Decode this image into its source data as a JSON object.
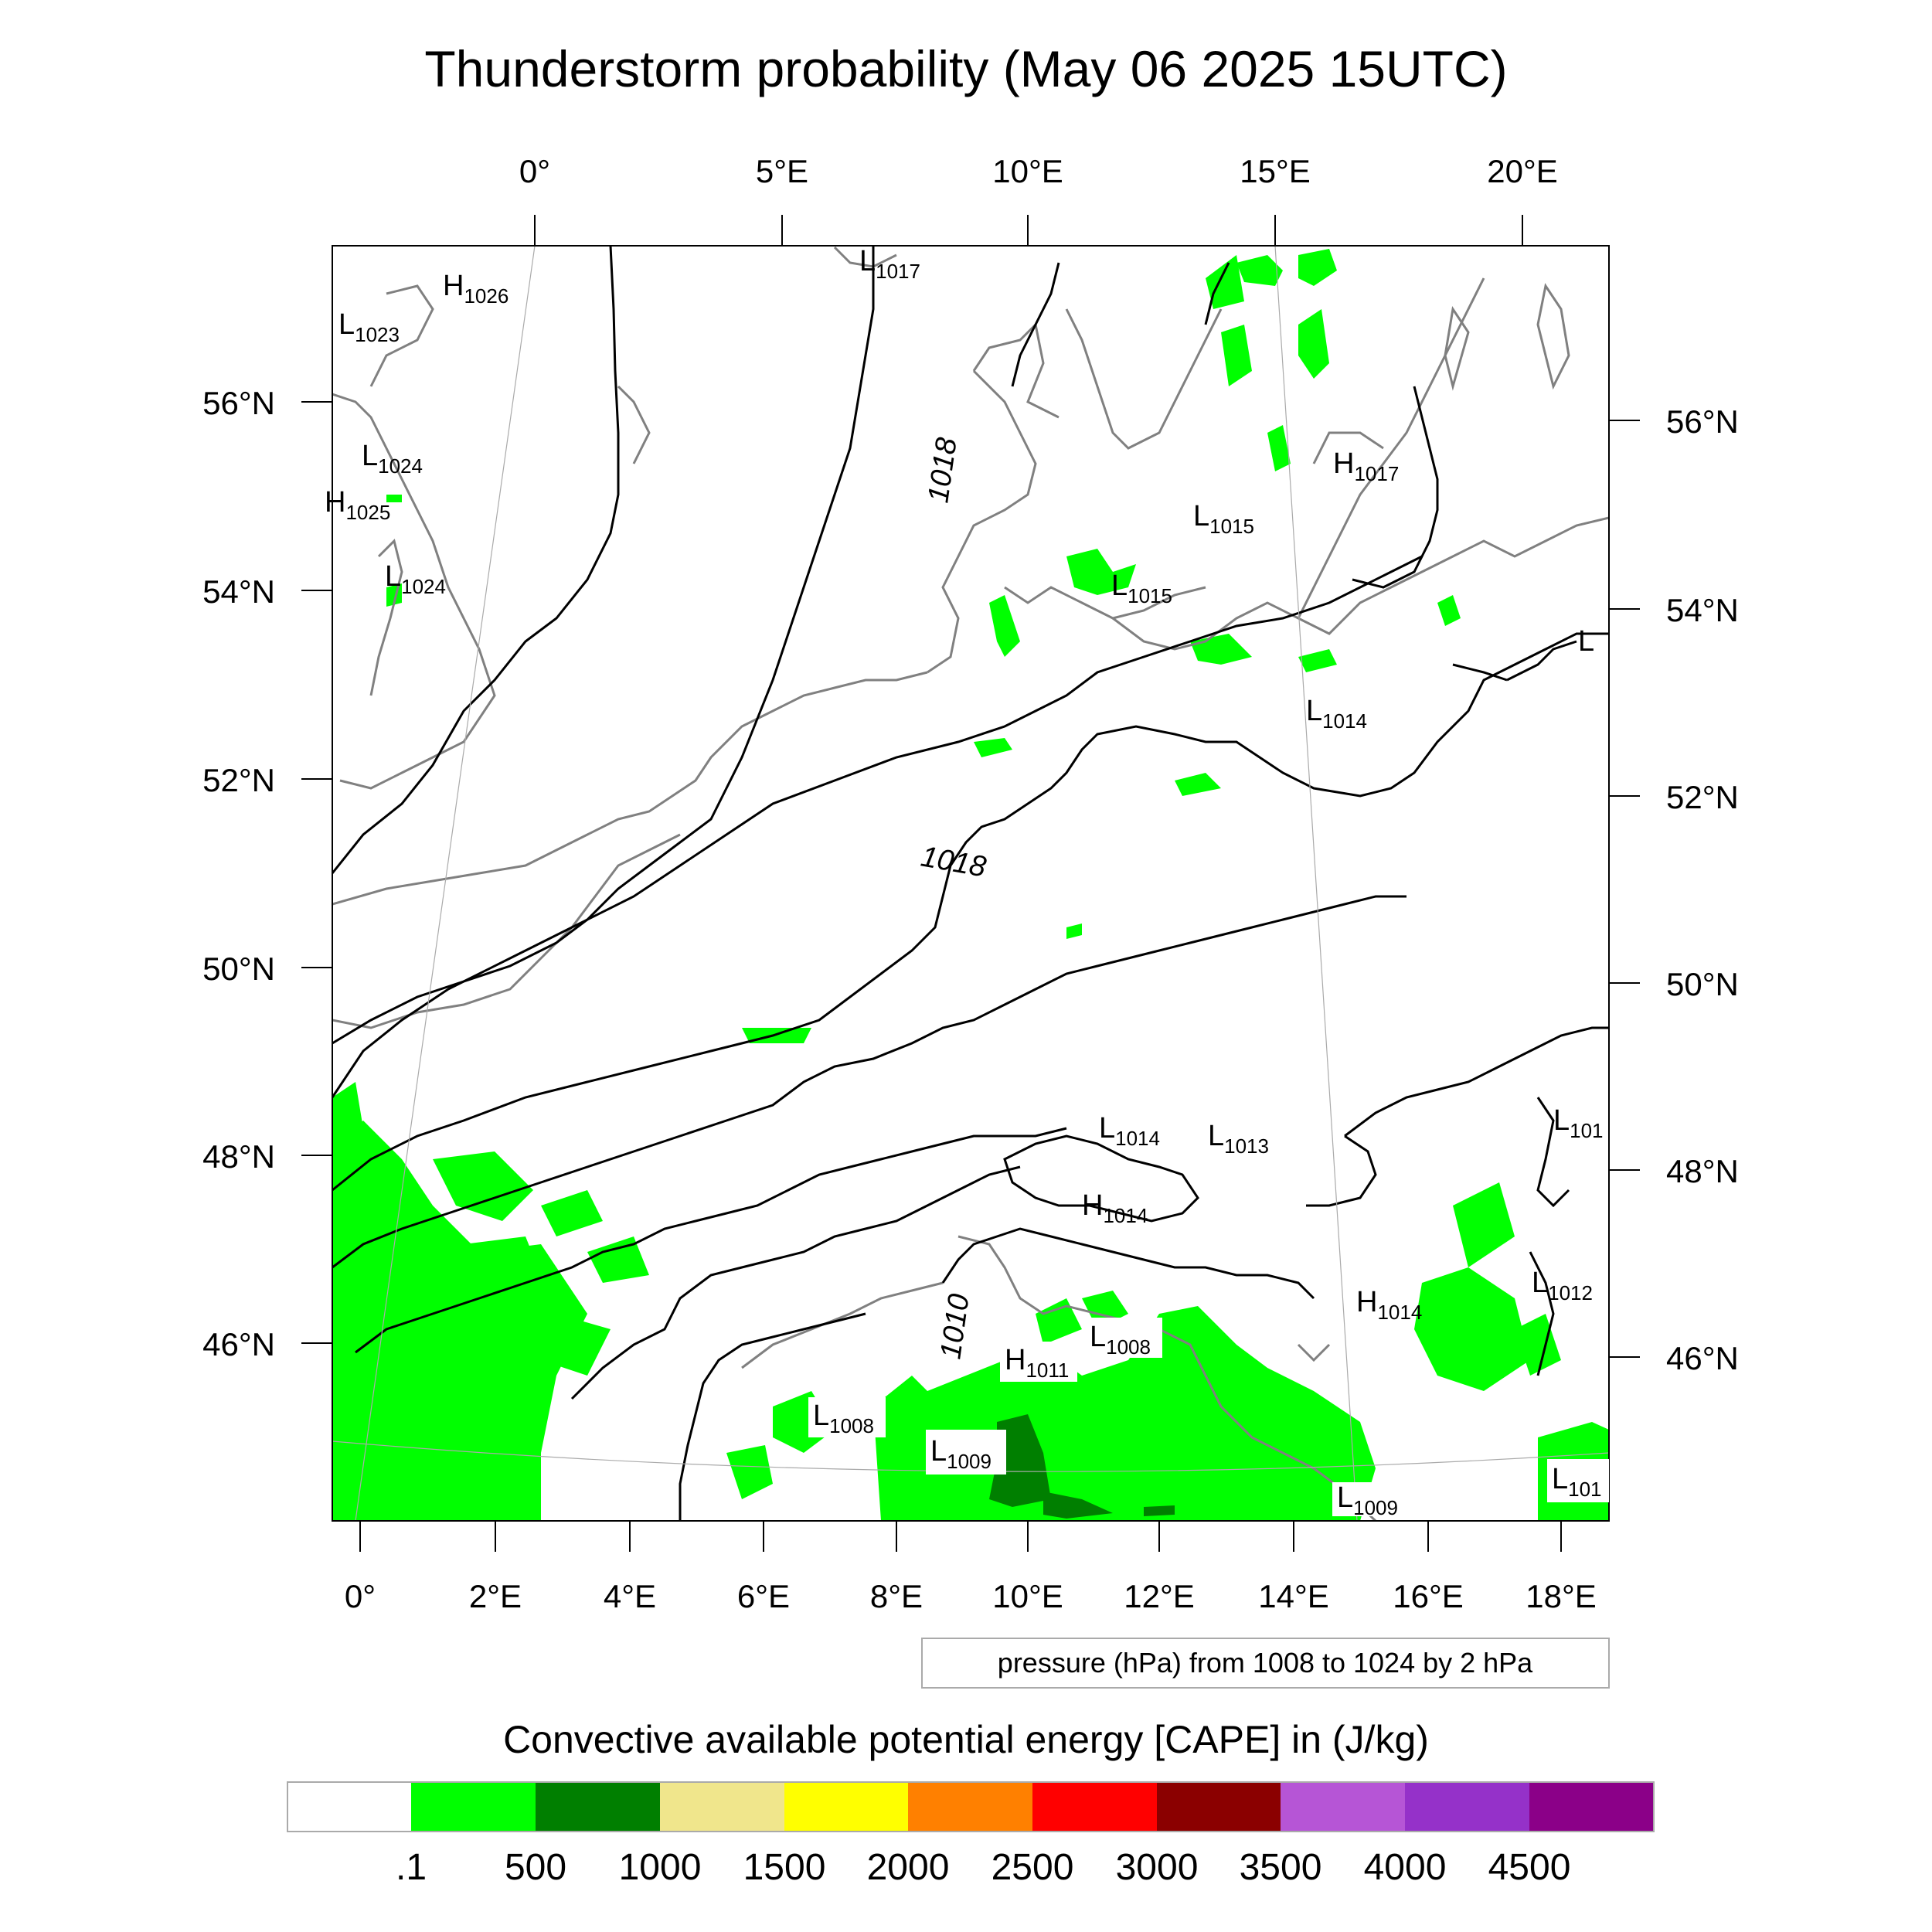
{
  "title": "Thunderstorm probability (May 06 2025 15UTC)",
  "top_lon_labels": [
    "0°",
    "5°E",
    "10°E",
    "15°E",
    "20°E"
  ],
  "bottom_lon_labels": [
    "0°",
    "2°E",
    "4°E",
    "6°E",
    "8°E",
    "10°E",
    "12°E",
    "14°E",
    "16°E",
    "18°E"
  ],
  "left_lat_labels": [
    "56°N",
    "54°N",
    "52°N",
    "50°N",
    "48°N",
    "46°N"
  ],
  "right_lat_labels": [
    "56°N",
    "54°N",
    "52°N",
    "50°N",
    "48°N",
    "46°N"
  ],
  "contour_labels": [
    "1018",
    "1018",
    "1010"
  ],
  "pressure_centers": [
    {
      "type": "L",
      "value": "1017"
    },
    {
      "type": "H",
      "value": "1026"
    },
    {
      "type": "L",
      "value": "1023"
    },
    {
      "type": "L",
      "value": "1024"
    },
    {
      "type": "H",
      "value": "1025"
    },
    {
      "type": "L",
      "value": "1024"
    },
    {
      "type": "H",
      "value": "1017"
    },
    {
      "type": "L",
      "value": "1015"
    },
    {
      "type": "L",
      "value": "1015"
    },
    {
      "type": "L",
      "value": "1014"
    },
    {
      "type": "L",
      "value": ""
    },
    {
      "type": "L",
      "value": "1014"
    },
    {
      "type": "L",
      "value": "1013"
    },
    {
      "type": "H",
      "value": "1014"
    },
    {
      "type": "L",
      "value": "101"
    },
    {
      "type": "H",
      "value": "1014"
    },
    {
      "type": "L",
      "value": "1012"
    },
    {
      "type": "L",
      "value": "1008"
    },
    {
      "type": "H",
      "value": "1011"
    },
    {
      "type": "L",
      "value": "1008"
    },
    {
      "type": "L",
      "value": "1009"
    },
    {
      "type": "L",
      "value": "1009"
    },
    {
      "type": "L",
      "value": "101"
    }
  ],
  "info_box": "pressure (hPa) from 1008 to 1024 by 2 hPa",
  "colorbar": {
    "title": "Convective available potential energy [CAPE] in (J/kg)",
    "colors": [
      "#ffffff",
      "#00ff00",
      "#007f00",
      "#f0e68c",
      "#ffff00",
      "#ff8000",
      "#ff0000",
      "#8b0000",
      "#b655d6",
      "#9531c9",
      "#8b0088"
    ],
    "tick_labels": [
      ".1",
      "500",
      "1000",
      "1500",
      "2000",
      "2500",
      "3000",
      "3500",
      "4000",
      "4500"
    ]
  },
  "map_colors": {
    "coastline": "#808080",
    "isobar": "#000000",
    "cape_low": "#00ff00",
    "cape_mid": "#007f00"
  }
}
